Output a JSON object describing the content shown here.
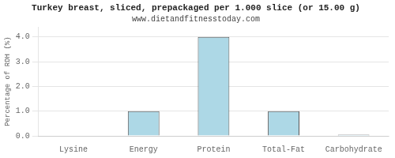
{
  "chart_data": {
    "type": "bar",
    "title": "Turkey breast, sliced, prepackaged per 1.000 slice (or 15.00 g)",
    "subtitle": "www.dietandfitnesstoday.com",
    "categories": [
      "Lysine",
      "Energy",
      "Protein",
      "Total-Fat",
      "Carbohydrate"
    ],
    "values": [
      0.0,
      1.0,
      4.0,
      1.0,
      0.05
    ],
    "color": "#add8e6",
    "ylabel": "Percentage of RDH (%)",
    "ylim": [
      0,
      4.4
    ],
    "yticks": [
      {
        "value": 0,
        "label": "0.0"
      },
      {
        "value": 1,
        "label": "1.0"
      },
      {
        "value": 2,
        "label": "2.0"
      },
      {
        "value": 3,
        "label": "3.0"
      },
      {
        "value": 4,
        "label": "4.0"
      }
    ],
    "grid": true
  }
}
